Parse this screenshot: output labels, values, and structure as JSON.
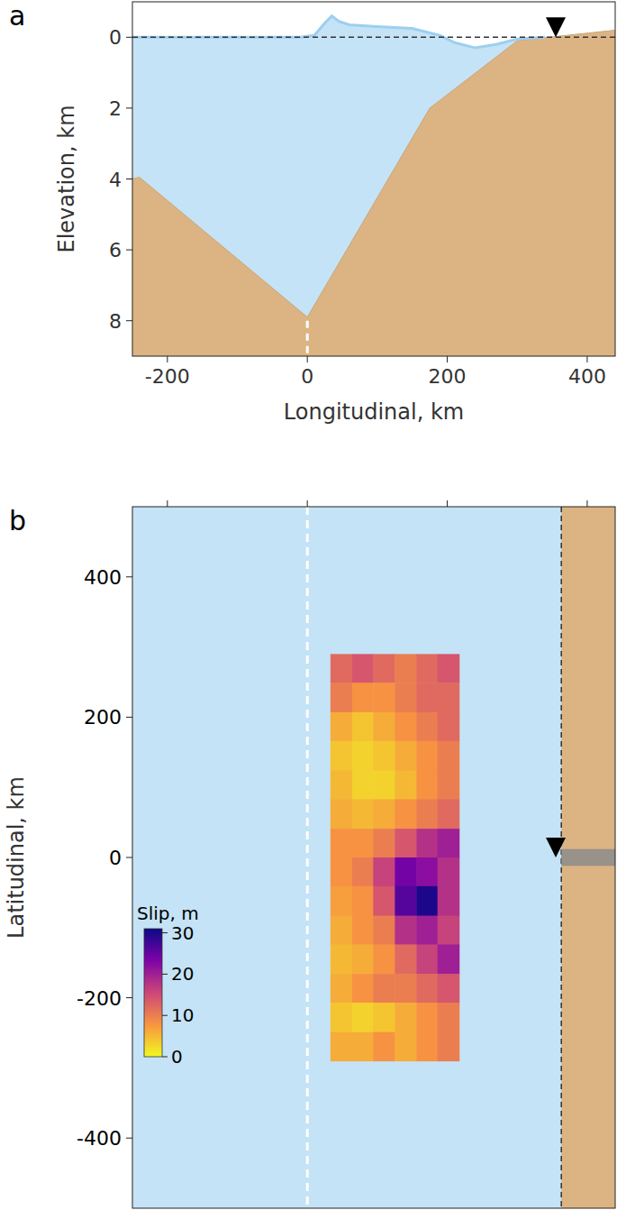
{
  "chart_data": [
    {
      "type": "area",
      "panel_label": "a",
      "xlabel": "Longitudinal, km",
      "ylabel": "Elevation, km",
      "xlim": [
        -250,
        440
      ],
      "ylim": [
        9,
        -1
      ],
      "xticks": [
        -200,
        0,
        200,
        400
      ],
      "yticks": [
        0,
        2,
        4,
        6,
        8
      ],
      "sea_level": 0,
      "trench_x": 0,
      "gauge": {
        "x": 355,
        "y": 0
      },
      "bathymetry": {
        "x": [
          -250,
          -240,
          0,
          175,
          300,
          440
        ],
        "values": [
          4.0,
          3.95,
          7.9,
          2.0,
          0.1,
          -0.2
        ]
      },
      "sea_surface": {
        "x": [
          -250,
          -10,
          10,
          25,
          35,
          45,
          60,
          100,
          150,
          190,
          210,
          240,
          270,
          300,
          340
        ],
        "values": [
          0,
          0,
          -0.05,
          -0.4,
          -0.6,
          -0.45,
          -0.35,
          -0.3,
          -0.25,
          -0.05,
          0.15,
          0.3,
          0.2,
          0.05,
          0
        ]
      }
    },
    {
      "type": "heatmap",
      "panel_label": "b",
      "ylabel": "Latitudinal, km",
      "tick_labels": "y",
      "xlim": [
        -250,
        440
      ],
      "ylim": [
        -500,
        500
      ],
      "xticks": [
        -200,
        0,
        200,
        400
      ],
      "yticks": [
        -400,
        -200,
        0,
        200,
        400
      ],
      "trench_x": 0,
      "coast_x": 363,
      "gauge": {
        "x": 355,
        "y": 0
      },
      "slip": {
        "x_edges": [
          33,
          64,
          94,
          125,
          156,
          186,
          217
        ],
        "y_edges": [
          290,
          249,
          207,
          166,
          124,
          83,
          41,
          0,
          -41,
          -83,
          -124,
          -166,
          -207,
          -249,
          -290
        ],
        "values": [
          [
            12,
            14,
            12,
            10,
            12,
            14
          ],
          [
            10,
            8,
            8,
            10,
            12,
            12
          ],
          [
            6,
            4,
            6,
            8,
            10,
            12
          ],
          [
            4,
            3,
            4,
            6,
            8,
            10
          ],
          [
            5,
            3,
            3,
            5,
            8,
            10
          ],
          [
            6,
            5,
            6,
            8,
            10,
            12
          ],
          [
            8,
            8,
            10,
            14,
            18,
            20
          ],
          [
            8,
            10,
            16,
            24,
            22,
            18
          ],
          [
            7,
            8,
            14,
            26,
            30,
            18
          ],
          [
            6,
            8,
            10,
            18,
            20,
            16
          ],
          [
            5,
            6,
            8,
            12,
            16,
            20
          ],
          [
            6,
            8,
            10,
            10,
            12,
            14
          ],
          [
            4,
            3,
            4,
            6,
            8,
            10
          ],
          [
            6,
            6,
            8,
            6,
            8,
            10
          ]
        ],
        "colorbar": {
          "label": "Slip, m",
          "range": [
            0,
            31
          ],
          "ticks": [
            0,
            10,
            20,
            30
          ]
        }
      }
    }
  ]
}
